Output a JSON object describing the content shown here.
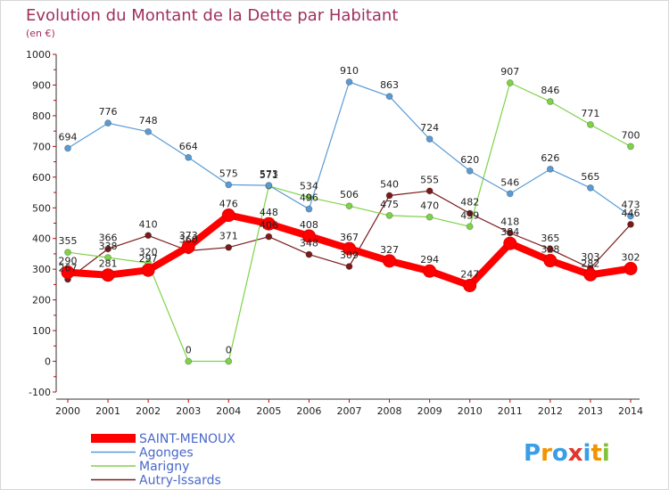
{
  "chart_data": {
    "type": "line",
    "title": "Evolution du Montant de la Dette par Habitant",
    "subtitle": "(en €)",
    "xlabel": "",
    "ylabel": "",
    "categories": [
      "2000",
      "2001",
      "2002",
      "2003",
      "2004",
      "2005",
      "2006",
      "2007",
      "2008",
      "2009",
      "2010",
      "2011",
      "2012",
      "2013",
      "2014"
    ],
    "y_ticks": [
      "-100",
      "0",
      "100",
      "200",
      "300",
      "400",
      "500",
      "600",
      "700",
      "800",
      "900",
      "1000"
    ],
    "ylim": [
      -100,
      1000
    ],
    "grid": false,
    "legend_position": "bottom-left",
    "series": [
      {
        "name": "SAINT-MENOUX",
        "color": "#ff0000",
        "values": [
          290,
          281,
          297,
          373,
          476,
          448,
          408,
          367,
          327,
          294,
          247,
          384,
          328,
          282,
          302
        ]
      },
      {
        "name": "Agonges",
        "color": "#5b9bd5",
        "values": [
          694,
          776,
          748,
          664,
          575,
          573,
          496,
          910,
          863,
          724,
          620,
          546,
          626,
          565,
          473
        ]
      },
      {
        "name": "Marigny",
        "color": "#7ed348",
        "values": [
          355,
          338,
          320,
          0,
          0,
          571,
          534,
          506,
          475,
          470,
          439,
          907,
          846,
          771,
          700
        ]
      },
      {
        "name": "Autry-Issards",
        "color": "#7a1a1a",
        "values": [
          267,
          366,
          410,
          360,
          371,
          406,
          348,
          309,
          540,
          555,
          482,
          418,
          365,
          303,
          446
        ]
      }
    ]
  },
  "logo": {
    "text": "Proxiti"
  }
}
